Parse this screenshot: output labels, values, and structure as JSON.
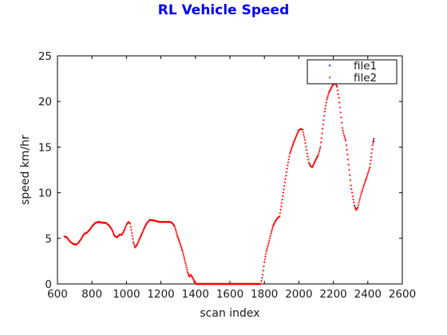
{
  "chart_data": {
    "type": "scatter",
    "title": "RL Vehicle Speed",
    "xlabel": "scan index",
    "ylabel": "speed km/hr",
    "xlim": [
      600,
      2600
    ],
    "ylim": [
      0,
      25
    ],
    "xticks": [
      600,
      800,
      1000,
      1200,
      1400,
      1600,
      1800,
      2000,
      2200,
      2400,
      2600
    ],
    "yticks": [
      0,
      5,
      10,
      15,
      20,
      25
    ],
    "grid": false,
    "legend": "top-right",
    "colors": {
      "title": "#0000ee",
      "file1": "#0000ff",
      "file2": "#ff0000"
    },
    "series": [
      {
        "name": "file1",
        "points": [
          [
            2432,
            15.6
          ],
          [
            2434,
            15.9
          ]
        ]
      },
      {
        "name": "file2",
        "points": [
          [
            640,
            5.2
          ],
          [
            655,
            5.1
          ],
          [
            670,
            4.7
          ],
          [
            690,
            4.4
          ],
          [
            710,
            4.3
          ],
          [
            725,
            4.6
          ],
          [
            740,
            5.0
          ],
          [
            755,
            5.5
          ],
          [
            770,
            5.6
          ],
          [
            785,
            5.9
          ],
          [
            800,
            6.3
          ],
          [
            820,
            6.7
          ],
          [
            840,
            6.8
          ],
          [
            860,
            6.7
          ],
          [
            880,
            6.7
          ],
          [
            900,
            6.4
          ],
          [
            915,
            6.0
          ],
          [
            930,
            5.3
          ],
          [
            945,
            5.1
          ],
          [
            960,
            5.4
          ],
          [
            975,
            5.4
          ],
          [
            990,
            6.0
          ],
          [
            1000,
            6.5
          ],
          [
            1012,
            6.8
          ],
          [
            1022,
            6.6
          ],
          [
            1032,
            5.6
          ],
          [
            1040,
            4.6
          ],
          [
            1050,
            4.0
          ],
          [
            1062,
            4.3
          ],
          [
            1075,
            4.9
          ],
          [
            1090,
            5.5
          ],
          [
            1105,
            6.2
          ],
          [
            1120,
            6.7
          ],
          [
            1135,
            7.0
          ],
          [
            1150,
            7.0
          ],
          [
            1170,
            6.9
          ],
          [
            1190,
            6.8
          ],
          [
            1210,
            6.8
          ],
          [
            1230,
            6.8
          ],
          [
            1250,
            6.8
          ],
          [
            1265,
            6.7
          ],
          [
            1280,
            6.3
          ],
          [
            1295,
            5.3
          ],
          [
            1310,
            4.5
          ],
          [
            1325,
            3.6
          ],
          [
            1340,
            2.5
          ],
          [
            1355,
            1.3
          ],
          [
            1365,
            0.8
          ],
          [
            1372,
            1.0
          ],
          [
            1380,
            0.8
          ],
          [
            1387,
            0.6
          ],
          [
            1393,
            0.3
          ],
          [
            1398,
            0.1
          ],
          [
            1405,
            0.0
          ],
          [
            1450,
            0.0
          ],
          [
            1500,
            0.0
          ],
          [
            1550,
            0.0
          ],
          [
            1600,
            0.0
          ],
          [
            1650,
            0.0
          ],
          [
            1700,
            0.0
          ],
          [
            1750,
            0.0
          ],
          [
            1780,
            0.0
          ],
          [
            1790,
            1.0
          ],
          [
            1800,
            2.4
          ],
          [
            1812,
            3.6
          ],
          [
            1825,
            4.5
          ],
          [
            1838,
            5.5
          ],
          [
            1850,
            6.3
          ],
          [
            1862,
            6.8
          ],
          [
            1875,
            7.2
          ],
          [
            1888,
            7.4
          ],
          [
            1898,
            8.5
          ],
          [
            1910,
            10.0
          ],
          [
            1922,
            11.5
          ],
          [
            1935,
            13.0
          ],
          [
            1948,
            14.3
          ],
          [
            1960,
            15.0
          ],
          [
            1972,
            15.6
          ],
          [
            1985,
            16.2
          ],
          [
            1998,
            16.8
          ],
          [
            2010,
            17.0
          ],
          [
            2022,
            16.9
          ],
          [
            2035,
            15.8
          ],
          [
            2048,
            14.3
          ],
          [
            2058,
            13.3
          ],
          [
            2068,
            12.9
          ],
          [
            2078,
            12.8
          ],
          [
            2088,
            13.2
          ],
          [
            2100,
            13.7
          ],
          [
            2112,
            14.1
          ],
          [
            2125,
            15.0
          ],
          [
            2138,
            17.0
          ],
          [
            2150,
            18.9
          ],
          [
            2162,
            20.2
          ],
          [
            2175,
            21.0
          ],
          [
            2188,
            21.5
          ],
          [
            2200,
            21.9
          ],
          [
            2212,
            22.0
          ],
          [
            2222,
            21.6
          ],
          [
            2232,
            20.4
          ],
          [
            2242,
            18.8
          ],
          [
            2252,
            17.1
          ],
          [
            2262,
            16.3
          ],
          [
            2272,
            15.7
          ],
          [
            2282,
            14.2
          ],
          [
            2292,
            12.5
          ],
          [
            2302,
            10.8
          ],
          [
            2312,
            9.6
          ],
          [
            2322,
            8.6
          ],
          [
            2332,
            8.1
          ],
          [
            2342,
            8.4
          ],
          [
            2352,
            9.2
          ],
          [
            2362,
            9.9
          ],
          [
            2372,
            10.5
          ],
          [
            2382,
            11.1
          ],
          [
            2392,
            11.6
          ],
          [
            2402,
            12.2
          ],
          [
            2412,
            12.8
          ],
          [
            2420,
            13.9
          ],
          [
            2428,
            15.2
          ],
          [
            2434,
            15.7
          ]
        ]
      }
    ]
  }
}
